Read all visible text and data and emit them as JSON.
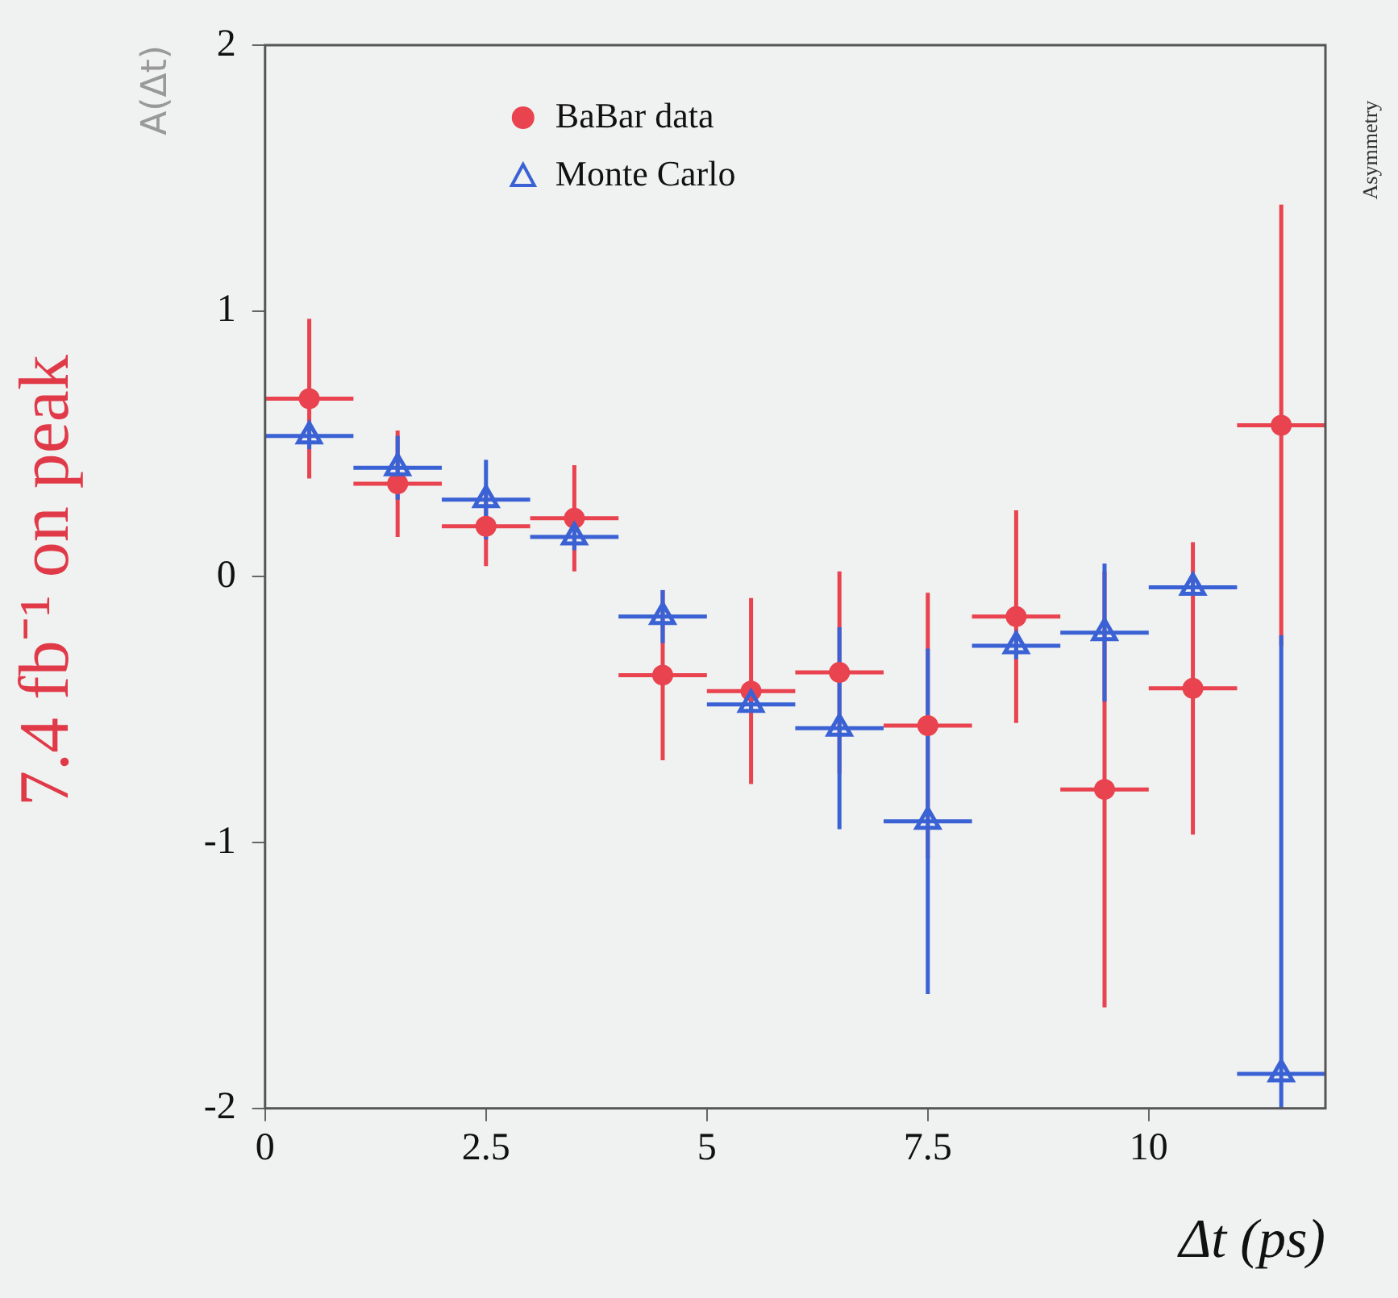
{
  "chart_data": {
    "type": "scatter",
    "xlabel": "Δt (ps)",
    "ylabel": "A(Δt)",
    "annotations": [
      "7.4 fb⁻¹ on peak",
      "Asymmetry"
    ],
    "x": [
      0.5,
      1.5,
      2.5,
      3.5,
      4.5,
      5.5,
      6.5,
      7.5,
      8.5,
      9.5,
      10.5,
      11.5
    ],
    "xlim": [
      0,
      12
    ],
    "xticks": [
      0,
      2.5,
      5,
      7.5,
      10
    ],
    "ylim": [
      -2,
      2
    ],
    "yticks": [
      -2,
      -1,
      0,
      1,
      2
    ],
    "grid": false,
    "legend": "top left",
    "series": [
      {
        "name": "BaBar data",
        "color": "#e8434f",
        "marker": "circle",
        "values": [
          0.67,
          0.35,
          0.19,
          0.22,
          -0.37,
          -0.43,
          -0.36,
          -0.56,
          -0.15,
          -0.8,
          -0.42,
          0.57
        ],
        "errors": [
          0.3,
          0.2,
          0.15,
          0.2,
          0.32,
          0.35,
          0.38,
          0.5,
          0.4,
          0.82,
          0.55,
          0.83
        ],
        "xerrors": [
          0.5,
          0.5,
          0.5,
          0.5,
          0.5,
          0.5,
          0.5,
          0.5,
          0.5,
          0.5,
          0.5,
          0.5
        ]
      },
      {
        "name": "Monte Carlo",
        "color": "#3a62d4",
        "marker": "triangle",
        "values": [
          0.53,
          0.41,
          0.29,
          0.15,
          -0.15,
          -0.48,
          -0.57,
          -0.92,
          -0.26,
          -0.21,
          -0.04,
          -1.87
        ],
        "errors": [
          0.05,
          0.12,
          0.15,
          0.05,
          0.1,
          0.03,
          0.38,
          0.65,
          0.05,
          0.26,
          0.03,
          [
            -2,
            -0.22
          ]
        ],
        "xerrors": [
          0.5,
          0.5,
          0.5,
          0.5,
          0.5,
          0.5,
          0.5,
          0.5,
          0.5,
          0.5,
          0.5,
          0.5
        ]
      }
    ]
  }
}
